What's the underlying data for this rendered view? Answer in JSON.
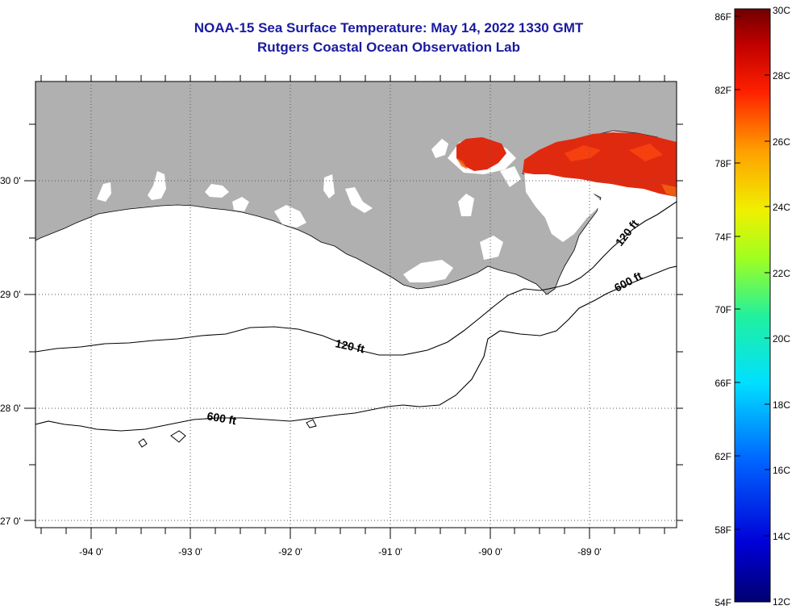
{
  "title_line1": "NOAA-15 Sea Surface Temperature:  May 14, 2022 1330 GMT",
  "title_line2": "Rutgers Coastal Ocean Observation Lab",
  "lat_labels": [
    "30 0'",
    "29 0'",
    "28 0'",
    "27 0'"
  ],
  "lon_labels": [
    "-94 0'",
    "-93 0'",
    "-92 0'",
    "-91 0'",
    "-90 0'",
    "-89 0'"
  ],
  "contour_labels": {
    "shelf_120_west": "120 ft",
    "shelf_120_east": "120 ft",
    "shelf_600_west": "600 ft",
    "shelf_600_east": "600 ft"
  },
  "colorbar": {
    "fahrenheit_labels": [
      "86F",
      "82F",
      "78F",
      "74F",
      "70F",
      "66F",
      "62F",
      "58F",
      "54F"
    ],
    "celsius_labels": [
      "30C",
      "28C",
      "26C",
      "24C",
      "22C",
      "20C",
      "18C",
      "16C",
      "14C",
      "12C"
    ],
    "range_c": [
      12,
      30
    ],
    "range_f": [
      54,
      86
    ]
  },
  "colors": {
    "land": "#b0b0b0",
    "ocean": "#ffffff",
    "title": "#1a1aa0",
    "sst_warm": "#e02a10",
    "grid": "#555555"
  },
  "legend_icon": "temperature-colorbar"
}
